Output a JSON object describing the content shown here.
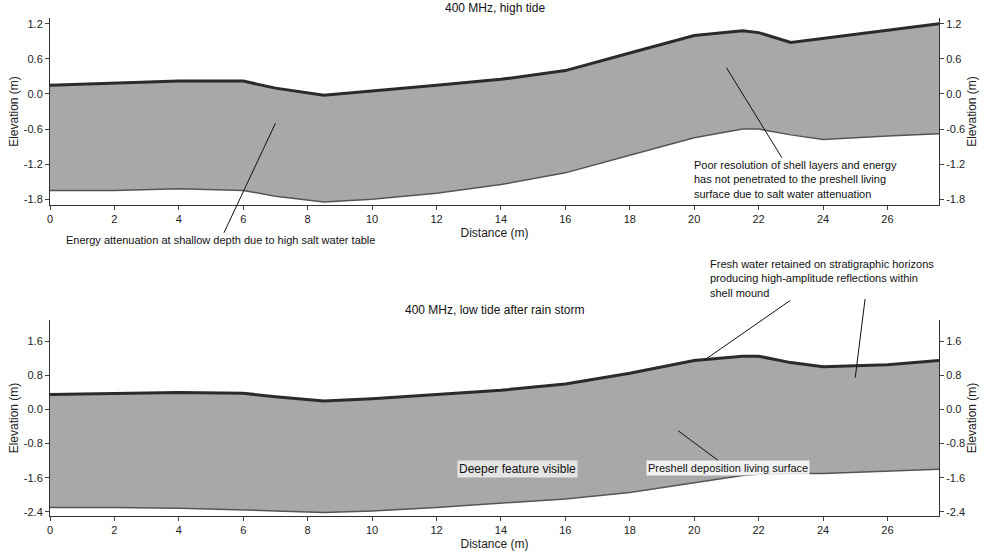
{
  "chart_data": [
    {
      "type": "area",
      "title": "400 MHz, high tide",
      "x_label": "Distance (m)",
      "y_label": "Elevation (m)",
      "y2_label": "Elevation (m)",
      "color": "#a8a8a8",
      "x": [
        0,
        2,
        4,
        6,
        7,
        8.5,
        10,
        12,
        14,
        16,
        18,
        20,
        21.5,
        22,
        23,
        24,
        26,
        27.6
      ],
      "series": [
        {
          "color": "#555555",
          "values": [
            -1.65,
            -1.65,
            -1.62,
            -1.65,
            -1.75,
            -1.85,
            -1.8,
            -1.7,
            -1.55,
            -1.35,
            -1.05,
            -0.75,
            -0.6,
            -0.6,
            -0.7,
            -0.78,
            -0.72,
            -0.68
          ]
        },
        {
          "color": "#2b2b2b",
          "values": [
            0.15,
            0.18,
            0.22,
            0.22,
            0.1,
            -0.02,
            0.05,
            0.15,
            0.25,
            0.4,
            0.7,
            1.0,
            1.08,
            1.05,
            0.88,
            0.95,
            1.1,
            1.2
          ]
        }
      ],
      "xlim": [
        0,
        27.6
      ],
      "xticks": [
        0,
        2,
        4,
        6,
        8,
        10,
        12,
        14,
        16,
        18,
        20,
        22,
        24,
        26
      ],
      "ylim": [
        -1.9,
        1.3
      ],
      "yticks": [
        1.2,
        0.6,
        {
          "value": 0,
          "label": "0.0"
        },
        -0.6,
        -1.2,
        -1.8
      ],
      "y2lim": [
        -1.9,
        1.3
      ],
      "y2ticks": [
        1.2,
        0.6,
        {
          "value": 0,
          "label": "0.0"
        },
        -0.6,
        -1.2,
        -1.8
      ],
      "grid": false,
      "annotations": [
        {
          "text": "Energy attenuation at shallow depth due to high salt water table",
          "points": [
            [
              7.0,
              -0.5
            ]
          ]
        },
        {
          "text": "Poor resolution of shell layers and energy has not penetrated to the preshell living surface due to salt water attenuation",
          "points": [
            [
              21.0,
              0.45
            ]
          ]
        }
      ]
    },
    {
      "type": "area",
      "title": "400 MHz, low tide after rain storm",
      "x_label": "Distance (m)",
      "y_label": "Elevation (m)",
      "y2_label": "Elevation (m)",
      "color": "#a8a8a8",
      "x": [
        0,
        2,
        4,
        6,
        7,
        8.5,
        10,
        12,
        14,
        16,
        18,
        20,
        21.5,
        22,
        23,
        24,
        26,
        27.6
      ],
      "series": [
        {
          "color": "#555555",
          "values": [
            -2.3,
            -2.3,
            -2.32,
            -2.35,
            -2.38,
            -2.42,
            -2.38,
            -2.3,
            -2.2,
            -2.1,
            -1.95,
            -1.72,
            -1.55,
            -1.52,
            -1.5,
            -1.5,
            -1.45,
            -1.4
          ]
        },
        {
          "color": "#2b2b2b",
          "values": [
            0.35,
            0.38,
            0.4,
            0.38,
            0.3,
            0.2,
            0.25,
            0.35,
            0.45,
            0.6,
            0.85,
            1.15,
            1.25,
            1.25,
            1.1,
            1.0,
            1.05,
            1.15
          ]
        }
      ],
      "xlim": [
        0,
        27.6
      ],
      "xticks": [
        0,
        2,
        4,
        6,
        8,
        10,
        12,
        14,
        16,
        18,
        20,
        22,
        24,
        26
      ],
      "ylim": [
        -2.5,
        2.1
      ],
      "yticks": [
        1.6,
        0.8,
        {
          "value": 0,
          "label": "0.0"
        },
        -0.8,
        -1.6,
        -2.4
      ],
      "y2lim": [
        -2.5,
        2.1
      ],
      "y2ticks": [
        1.6,
        0.8,
        {
          "value": 0,
          "label": "0.0"
        },
        -0.8,
        -1.6,
        -2.4
      ],
      "grid": false,
      "annotations": [
        {
          "text": "Fresh water retained on stratigraphic horizons producing high-amplitude reflections within shell mound",
          "points": [
            [
              20.3,
              1.15
            ],
            [
              25.0,
              0.75
            ]
          ]
        },
        {
          "text": "Deeper feature visible",
          "x": 14.5,
          "y": -1.4
        },
        {
          "text": "Preshell deposition living surface",
          "points": [
            [
              19.5,
              -0.5
            ]
          ]
        }
      ]
    }
  ]
}
